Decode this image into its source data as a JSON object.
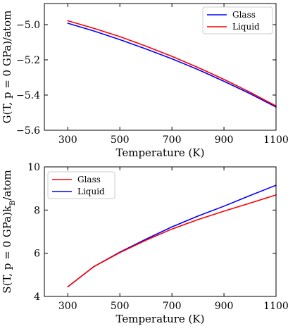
{
  "chart_data": [
    {
      "type": "line",
      "xlabel": "Temperature (K)",
      "ylabel": "G(T, p = 0 GPa)/atom",
      "xlim": [
        210,
        1100
      ],
      "ylim": [
        -5.6,
        -4.88
      ],
      "xticks": [
        300,
        500,
        700,
        900,
        1100
      ],
      "xtick_labels": [
        "300",
        "500",
        "700",
        "900",
        "1100"
      ],
      "yticks": [
        -5.0,
        -5.2,
        -5.4,
        -5.6
      ],
      "ytick_labels": [
        "−5.0",
        "−5.2",
        "−5.4",
        "−5.6"
      ],
      "legend_position": "top-right",
      "legend_order": [
        0,
        1
      ],
      "grid": false,
      "series": [
        {
          "name": "Glass",
          "color": "#0000ff",
          "x": [
            300,
            400,
            500,
            600,
            700,
            800,
            900,
            1000,
            1100
          ],
          "y": [
            -4.992,
            -5.036,
            -5.085,
            -5.138,
            -5.194,
            -5.255,
            -5.322,
            -5.392,
            -5.468
          ]
        },
        {
          "name": "Liquid",
          "color": "#ff0000",
          "x": [
            300,
            400,
            500,
            600,
            700,
            800,
            900,
            1000,
            1100
          ],
          "y": [
            -4.978,
            -5.021,
            -5.068,
            -5.122,
            -5.18,
            -5.243,
            -5.311,
            -5.384,
            -5.462
          ]
        }
      ]
    },
    {
      "type": "line",
      "xlabel": "Temperature (K)",
      "ylabel": "S(T, p = 0 GPa)k_B/atom",
      "xlim": [
        210,
        1100
      ],
      "ylim": [
        4,
        10
      ],
      "xticks": [
        300,
        500,
        700,
        900,
        1100
      ],
      "xtick_labels": [
        "300",
        "500",
        "700",
        "900",
        "1100"
      ],
      "yticks": [
        4,
        6,
        8,
        10
      ],
      "ytick_labels": [
        "4",
        "6",
        "8",
        "10"
      ],
      "legend_position": "top-left",
      "legend_order": [
        1,
        0
      ],
      "grid": false,
      "series": [
        {
          "name": "Liquid",
          "color": "#0000ff",
          "x": [
            300,
            400,
            500,
            600,
            700,
            800,
            900,
            1000,
            1100
          ],
          "y": [
            4.45,
            5.38,
            6.05,
            6.65,
            7.22,
            7.72,
            8.18,
            8.67,
            9.15
          ]
        },
        {
          "name": "Glass",
          "color": "#ff0000",
          "x": [
            300,
            400,
            500,
            600,
            700,
            800,
            900,
            1000,
            1100
          ],
          "y": [
            4.45,
            5.38,
            6.03,
            6.6,
            7.12,
            7.56,
            7.95,
            8.32,
            8.7
          ]
        }
      ]
    }
  ]
}
